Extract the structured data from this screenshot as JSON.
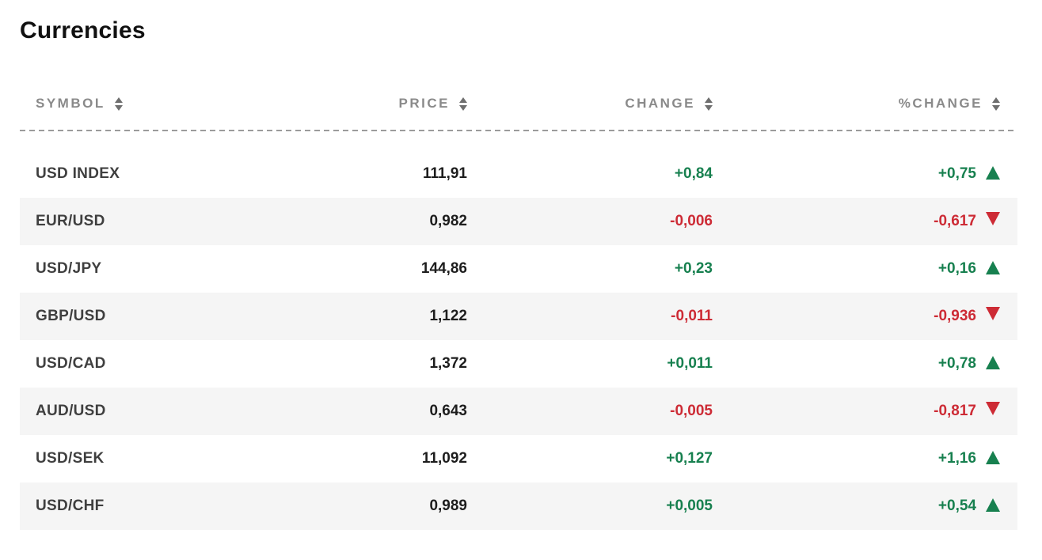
{
  "page": {
    "title": "Currencies"
  },
  "table": {
    "headers": [
      {
        "label": "SYMBOL"
      },
      {
        "label": "PRICE"
      },
      {
        "label": "CHANGE"
      },
      {
        "label": "%CHANGE"
      }
    ],
    "rows": [
      {
        "symbol": "USD INDEX",
        "price": "111,91",
        "change": "+0,84",
        "pct_change": "+0,75",
        "direction": "up"
      },
      {
        "symbol": "EUR/USD",
        "price": "0,982",
        "change": "-0,006",
        "pct_change": "-0,617",
        "direction": "down"
      },
      {
        "symbol": "USD/JPY",
        "price": "144,86",
        "change": "+0,23",
        "pct_change": "+0,16",
        "direction": "up"
      },
      {
        "symbol": "GBP/USD",
        "price": "1,122",
        "change": "-0,011",
        "pct_change": "-0,936",
        "direction": "down"
      },
      {
        "symbol": "USD/CAD",
        "price": "1,372",
        "change": "+0,011",
        "pct_change": "+0,78",
        "direction": "up"
      },
      {
        "symbol": "AUD/USD",
        "price": "0,643",
        "change": "-0,005",
        "pct_change": "-0,817",
        "direction": "down"
      },
      {
        "symbol": "USD/SEK",
        "price": "11,092",
        "change": "+0,127",
        "pct_change": "+1,16",
        "direction": "up"
      },
      {
        "symbol": "USD/CHF",
        "price": "0,989",
        "change": "+0,005",
        "pct_change": "+0,54",
        "direction": "up"
      }
    ]
  },
  "colors": {
    "positive": "#17804f",
    "negative": "#cd2b35",
    "header_text": "#8a8a8a",
    "row_alt_bg": "#f5f5f5",
    "symbol_text": "#3f3f3f",
    "price_text": "#1d1d1d",
    "sort_icon": "#6f6f6f",
    "divider": "#9b9b9b"
  }
}
